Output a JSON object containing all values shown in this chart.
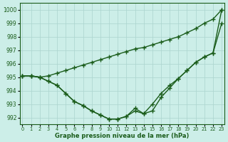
{
  "xlabel": "Graphe pression niveau de la mer (hPa)",
  "ylim": [
    991.5,
    1000.5
  ],
  "yticks": [
    992,
    993,
    994,
    995,
    996,
    997,
    998,
    999,
    1000
  ],
  "xlim": [
    -0.3,
    23.3
  ],
  "xticks": [
    0,
    1,
    2,
    3,
    4,
    5,
    6,
    7,
    8,
    9,
    10,
    11,
    12,
    13,
    14,
    15,
    16,
    17,
    18,
    19,
    20,
    21,
    22,
    23
  ],
  "bg_color": "#cceee8",
  "grid_color": "#aad4ce",
  "line_color": "#1a5c1a",
  "line_width": 1.0,
  "marker": "+",
  "marker_size": 4,
  "marker_lw": 1.0,
  "series1": [
    995.1,
    995.1,
    995.0,
    995.1,
    995.3,
    995.5,
    995.7,
    995.9,
    996.1,
    996.3,
    996.5,
    996.7,
    996.9,
    997.1,
    997.2,
    997.4,
    997.6,
    997.8,
    998.0,
    998.3,
    998.6,
    999.0,
    999.3,
    1000.0
  ],
  "series2": [
    995.1,
    995.1,
    995.0,
    994.7,
    994.4,
    993.8,
    993.2,
    992.9,
    992.5,
    992.2,
    991.9,
    991.9,
    992.1,
    992.5,
    992.3,
    993.0,
    993.8,
    994.4,
    994.9,
    995.5,
    996.1,
    996.5,
    996.8,
    999.0
  ],
  "series3": [
    995.1,
    995.1,
    995.0,
    994.7,
    994.4,
    993.8,
    993.2,
    992.9,
    992.5,
    992.2,
    991.9,
    991.9,
    992.1,
    992.7,
    992.3,
    992.5,
    993.5,
    994.2,
    994.9,
    995.5,
    996.1,
    996.5,
    996.8,
    1000.0
  ]
}
